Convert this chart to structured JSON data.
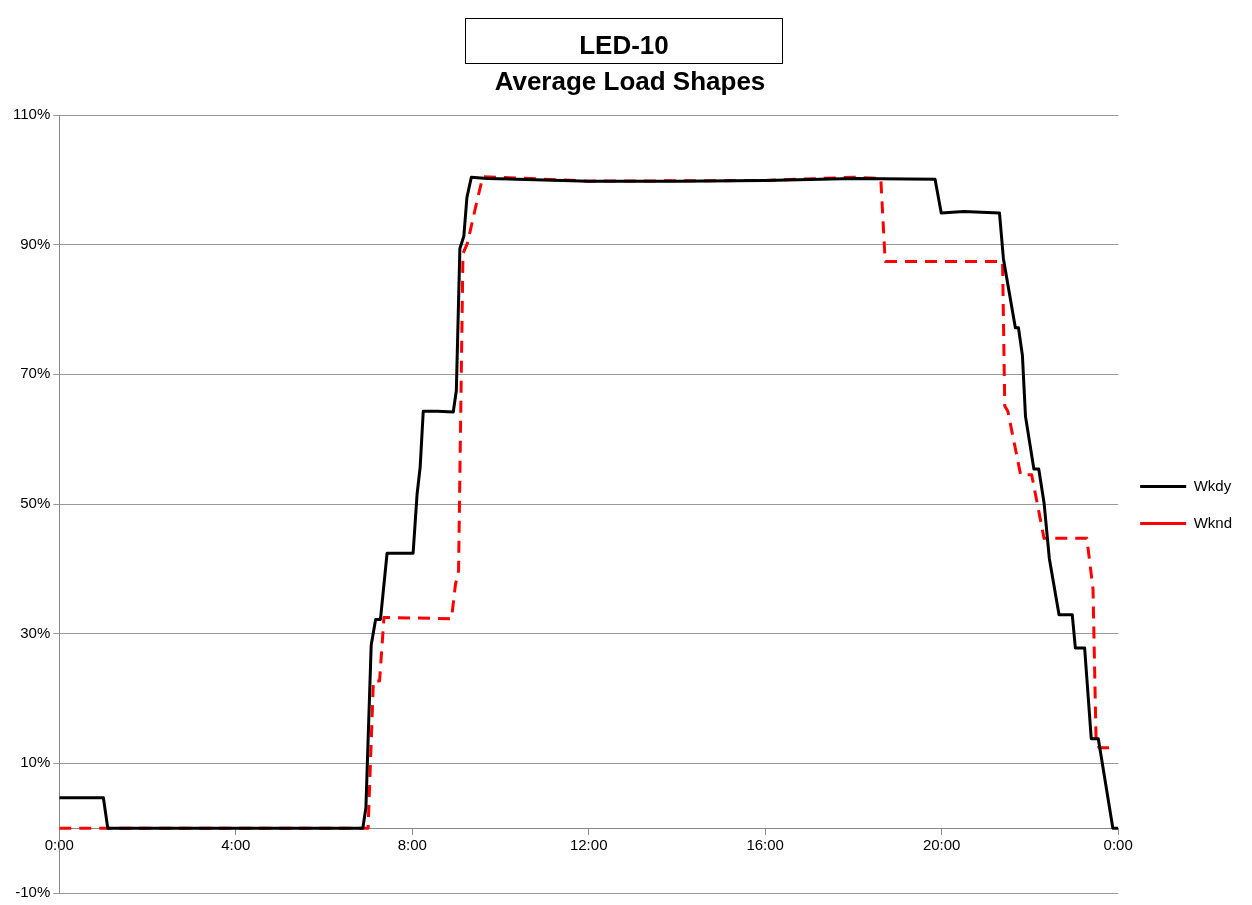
{
  "chart_data": {
    "type": "line",
    "title": "LED-10",
    "subtitle": "Average Load Shapes",
    "xlim": [
      0,
      24
    ],
    "xticks": [
      {
        "value": 0,
        "label": "0:00"
      },
      {
        "value": 4,
        "label": "4:00"
      },
      {
        "value": 8,
        "label": "8:00"
      },
      {
        "value": 12,
        "label": "12:00"
      },
      {
        "value": 16,
        "label": "16:00"
      },
      {
        "value": 20,
        "label": "20:00"
      },
      {
        "value": 24,
        "label": "0:00"
      }
    ],
    "ylim": [
      -10,
      110
    ],
    "yticks": [
      {
        "value": -10,
        "label": "-10%"
      },
      {
        "value": 10,
        "label": "10%"
      },
      {
        "value": 30,
        "label": "30%"
      },
      {
        "value": 50,
        "label": "50%"
      },
      {
        "value": 70,
        "label": "70%"
      },
      {
        "value": 90,
        "label": "90%"
      },
      {
        "value": 110,
        "label": "110%"
      }
    ],
    "grid": "y",
    "legend": "right",
    "marker": "none",
    "series": [
      {
        "name": "Wkdy",
        "color": "#000000",
        "line_style": "solid",
        "x": [
          0,
          1.0,
          1.1,
          6.88,
          6.95,
          7.07,
          7.17,
          7.28,
          7.43,
          8.02,
          8.11,
          8.18,
          8.25,
          8.58,
          8.93,
          9.0,
          9.08,
          9.17,
          9.24,
          9.34,
          9.7,
          12,
          14,
          16,
          18,
          19.85,
          19.99,
          20.5,
          21.31,
          21.4,
          21.67,
          21.74,
          21.83,
          21.9,
          22.09,
          22.2,
          22.32,
          22.44,
          22.66,
          22.96,
          23.03,
          23.24,
          23.39,
          23.55,
          23.88,
          24
        ],
        "values": [
          4.7,
          4.7,
          0,
          0,
          3.1,
          28.2,
          32.2,
          32.2,
          42.4,
          42.4,
          51.5,
          55.7,
          64.3,
          64.3,
          64.2,
          67.5,
          89.4,
          91.3,
          97.3,
          100.4,
          100.2,
          99.8,
          99.8,
          99.9,
          100.2,
          100.1,
          94.9,
          95.1,
          94.9,
          87.8,
          77.2,
          77.2,
          72.9,
          63.5,
          55.4,
          55.4,
          50.2,
          41.6,
          32.9,
          32.9,
          27.8,
          27.8,
          13.8,
          13.8,
          0,
          0
        ]
      },
      {
        "name": "Wknd",
        "color": "#ff0000",
        "line_style": "dashed",
        "x": [
          0,
          7.0,
          7.12,
          7.26,
          7.36,
          8.89,
          8.98,
          9.05,
          9.15,
          9.25,
          9.45,
          9.6,
          12,
          16,
          18,
          18.62,
          18.72,
          21.38,
          21.43,
          21.5,
          21.79,
          22.04,
          22.32,
          23.29,
          23.43,
          23.5,
          23.57,
          23.86
        ],
        "values": [
          0,
          0,
          22.7,
          22.7,
          32.5,
          32.3,
          37.6,
          39.7,
          88.6,
          90.2,
          96.2,
          100.5,
          99.8,
          99.9,
          100.4,
          100.2,
          87.4,
          87.4,
          65.1,
          64.3,
          54.5,
          54.5,
          44.7,
          44.7,
          36.9,
          13.3,
          12.4,
          12.4
        ]
      }
    ]
  }
}
